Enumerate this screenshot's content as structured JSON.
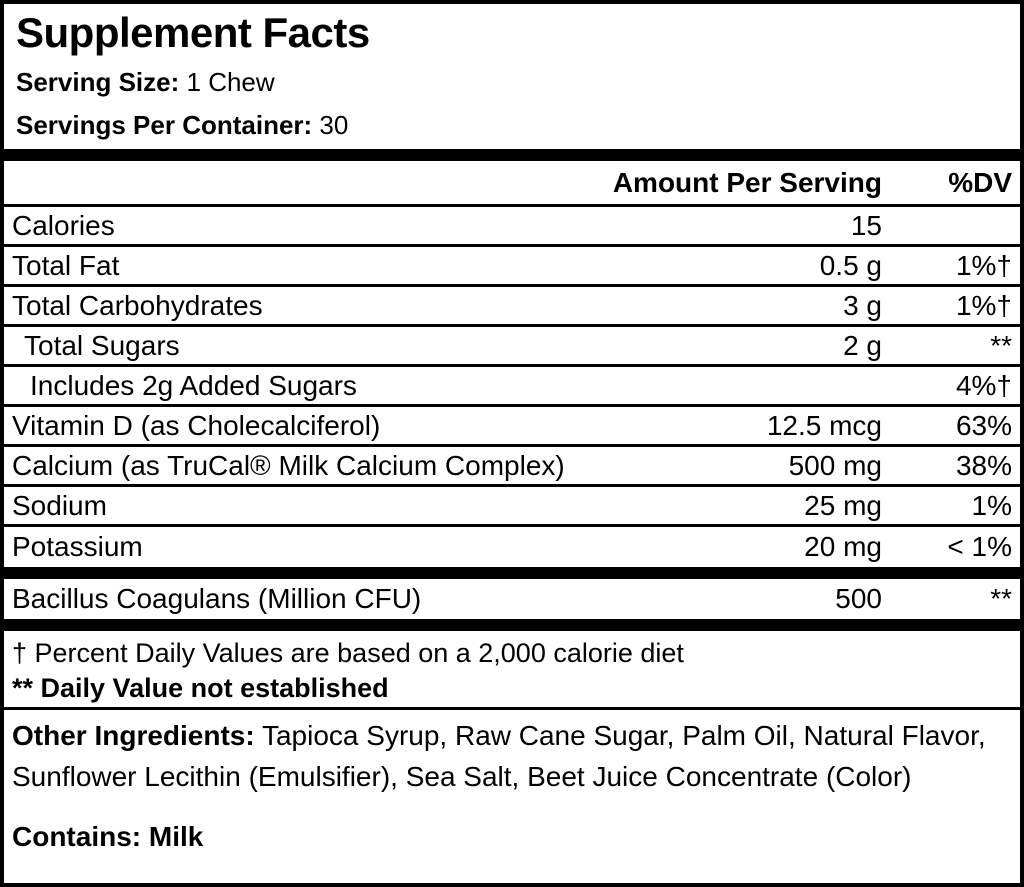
{
  "label": {
    "title": "Supplement Facts",
    "serving_size_label": "Serving Size:",
    "serving_size_value": " 1 Chew",
    "servings_per_container_label": "Servings Per Container:",
    "servings_per_container_value": " 30"
  },
  "table": {
    "amount_header": "Amount Per Serving",
    "dv_header": "%DV",
    "rows": [
      {
        "name": "Calories",
        "amount": "15",
        "dv": "",
        "indent": 0
      },
      {
        "name": "Total Fat",
        "amount": "0.5 g",
        "dv": "1%†",
        "indent": 0
      },
      {
        "name": "Total Carbohydrates",
        "amount": "3 g",
        "dv": "1%†",
        "indent": 0
      },
      {
        "name": "Total Sugars",
        "amount": "2 g",
        "dv": "**",
        "indent": 1
      },
      {
        "name": "Includes 2g Added Sugars",
        "amount": "",
        "dv": "4%†",
        "indent": 2
      },
      {
        "name": "Vitamin D (as Cholecalciferol)",
        "amount": "12.5 mcg",
        "dv": "63%",
        "indent": 0
      },
      {
        "name": "Calcium (as TruCal® Milk Calcium Complex)",
        "amount": "500 mg",
        "dv": "38%",
        "indent": 0
      },
      {
        "name": "Sodium",
        "amount": "25 mg",
        "dv": "1%",
        "indent": 0
      },
      {
        "name": "Potassium",
        "amount": "20 mg",
        "dv": "< 1%",
        "indent": 0
      }
    ],
    "probiotic_rows": [
      {
        "name": "Bacillus Coagulans (Million CFU)",
        "amount": "500",
        "dv": "**",
        "indent": 0
      }
    ]
  },
  "footnotes": {
    "daily_value_note": "† Percent Daily Values are based on a 2,000 calorie diet",
    "not_established_note": "** Daily Value not established"
  },
  "other_ingredients": {
    "label": "Other Ingredients:",
    "value": " Tapioca Syrup, Raw Cane Sugar, Palm Oil, Natural Flavor, Sunflower Lecithin (Emulsifier), Sea Salt, Beet Juice Concentrate (Color)"
  },
  "allergens": {
    "label": "Contains:",
    "value": " Milk"
  },
  "colors": {
    "background": "#ffffff",
    "border": "#000000",
    "text": "#000000"
  }
}
